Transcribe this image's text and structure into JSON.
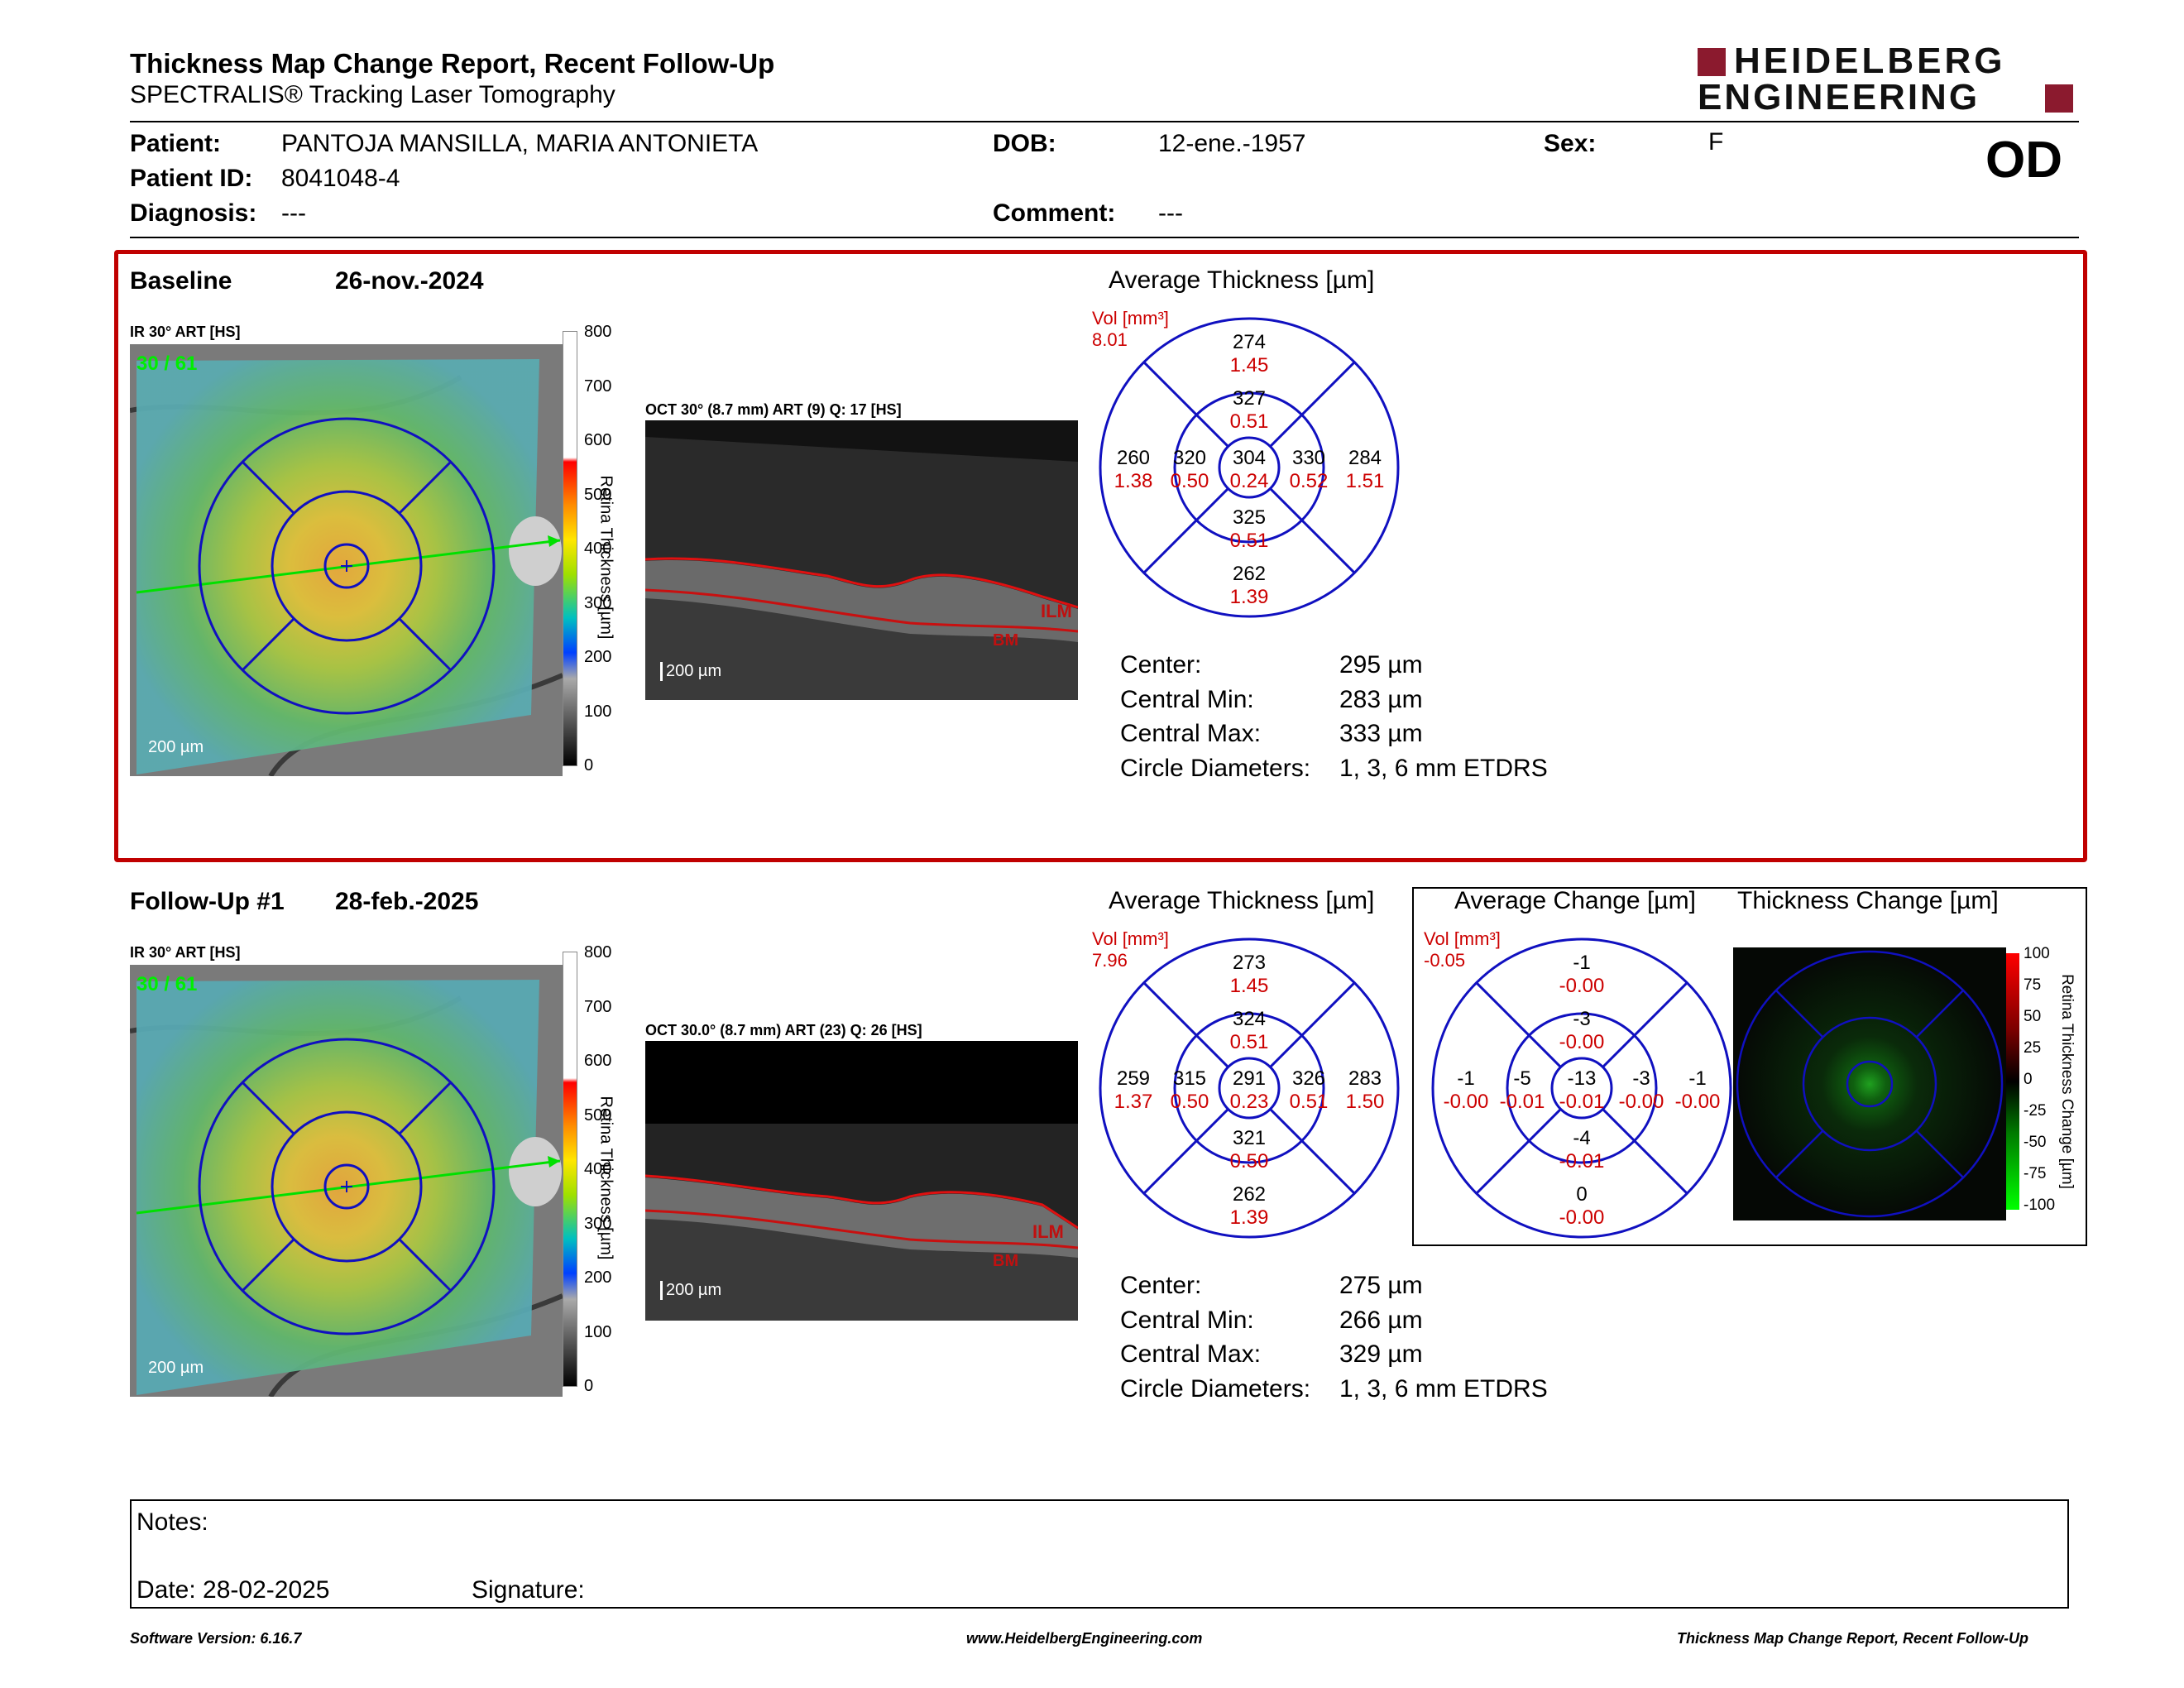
{
  "header": {
    "title": "Thickness Map Change Report, Recent Follow-Up",
    "subtitle": "SPECTRALIS® Tracking Laser Tomography",
    "logo_line1": "HEIDELBERG",
    "logo_line2": "ENGINEERING",
    "eye": "OD"
  },
  "patient": {
    "patient_label": "Patient:",
    "patient_value": "PANTOJA MANSILLA, MARIA ANTONIETA",
    "id_label": "Patient ID:",
    "id_value": "8041048-4",
    "diagnosis_label": "Diagnosis:",
    "diagnosis_value": "---",
    "dob_label": "DOB:",
    "dob_value": "12-ene.-1957",
    "comment_label": "Comment:",
    "comment_value": "---",
    "sex_label": "Sex:",
    "sex_value": "F"
  },
  "baseline": {
    "label": "Baseline",
    "date": "26-nov.-2024",
    "ir_caption": "IR 30° ART [HS]",
    "ir_overlay": "30 / 61",
    "scale_text": "200 µm",
    "oct_caption": "OCT 30° (8.7 mm) ART (9) Q: 17 [HS]",
    "oct_scale": "200 µm",
    "ilm": "ILM",
    "bm": "BM",
    "colorbar_label": "Retina Thickness [µm]",
    "colorbar_ticks": [
      "800",
      "700",
      "600",
      "500",
      "400",
      "300",
      "200",
      "100",
      "0"
    ],
    "grid_title": "Average Thickness [µm]",
    "vol_label": "Vol [mm³]",
    "vol_total": "8.01",
    "grid": {
      "outer_top": [
        "274",
        "1.45"
      ],
      "inner_top": [
        "327",
        "0.51"
      ],
      "outer_left": [
        "260",
        "1.38"
      ],
      "inner_left": [
        "320",
        "0.50"
      ],
      "center": [
        "304",
        "0.24"
      ],
      "inner_right": [
        "330",
        "0.52"
      ],
      "outer_right": [
        "284",
        "1.51"
      ],
      "inner_bottom": [
        "325",
        "0.51"
      ],
      "outer_bottom": [
        "262",
        "1.39"
      ]
    },
    "stats": [
      {
        "label": "Center:",
        "value": "295 µm"
      },
      {
        "label": "Central Min:",
        "value": "283 µm"
      },
      {
        "label": "Central Max:",
        "value": "333 µm"
      },
      {
        "label": "Circle Diameters:",
        "value": "1, 3, 6 mm ETDRS"
      }
    ]
  },
  "followup": {
    "label": "Follow-Up #1",
    "date": "28-feb.-2025",
    "ir_caption": "IR 30° ART [HS]",
    "ir_overlay": "30 / 61",
    "scale_text": "200 µm",
    "oct_caption": "OCT 30.0° (8.7 mm) ART (23) Q: 26 [HS]",
    "oct_scale": "200 µm",
    "ilm": "ILM",
    "bm": "BM",
    "colorbar_label": "Retina Thickness [µm]",
    "colorbar_ticks": [
      "800",
      "700",
      "600",
      "500",
      "400",
      "300",
      "200",
      "100",
      "0"
    ],
    "grid_title": "Average Thickness [µm]",
    "vol_label": "Vol [mm³]",
    "vol_total": "7.96",
    "grid": {
      "outer_top": [
        "273",
        "1.45"
      ],
      "inner_top": [
        "324",
        "0.51"
      ],
      "outer_left": [
        "259",
        "1.37"
      ],
      "inner_left": [
        "315",
        "0.50"
      ],
      "center": [
        "291",
        "0.23"
      ],
      "inner_right": [
        "326",
        "0.51"
      ],
      "outer_right": [
        "283",
        "1.50"
      ],
      "inner_bottom": [
        "321",
        "0.50"
      ],
      "outer_bottom": [
        "262",
        "1.39"
      ]
    },
    "stats": [
      {
        "label": "Center:",
        "value": "275 µm"
      },
      {
        "label": "Central Min:",
        "value": "266 µm"
      },
      {
        "label": "Central Max:",
        "value": "329 µm"
      },
      {
        "label": "Circle Diameters:",
        "value": "1, 3, 6 mm ETDRS"
      }
    ],
    "change_title": "Average Change [µm]",
    "change_vol_label": "Vol [mm³]",
    "change_vol_total": "-0.05",
    "change_grid": {
      "outer_top": [
        "-1",
        "-0.00"
      ],
      "inner_top": [
        "-3",
        "-0.00"
      ],
      "outer_left": [
        "-1",
        "-0.00"
      ],
      "inner_left": [
        "-5",
        "-0.01"
      ],
      "center": [
        "-13",
        "-0.01"
      ],
      "inner_right": [
        "-3",
        "-0.00"
      ],
      "outer_right": [
        "-1",
        "-0.00"
      ],
      "inner_bottom": [
        "-4",
        "-0.01"
      ],
      "outer_bottom": [
        "0",
        "-0.00"
      ]
    },
    "thickness_change_title": "Thickness Change [µm]",
    "change_colorbar_label": "Retina Thickness Change [µm]",
    "change_colorbar_ticks": [
      "100",
      "75",
      "50",
      "25",
      "0",
      "-25",
      "-50",
      "-75",
      "-100"
    ]
  },
  "notes": {
    "label": "Notes:",
    "date_label": "Date: 28-02-2025",
    "signature_label": "Signature:"
  },
  "footer": {
    "left": "Software Version: 6.16.7",
    "center": "www.HeidelbergEngineering.com",
    "right": "Thickness Map Change Report, Recent Follow-Up"
  },
  "colors": {
    "panel_border": "#c00000",
    "grid_lines": "#1010c0",
    "volume_text": "#cc0000",
    "logo": "#8b1a2e"
  }
}
